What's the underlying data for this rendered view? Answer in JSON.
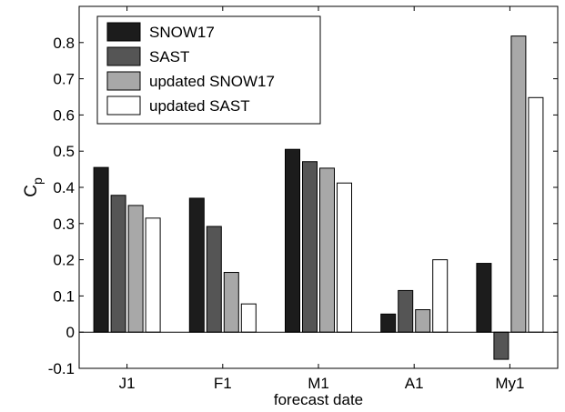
{
  "chart_data": {
    "type": "bar",
    "title": "",
    "xlabel": "forecast date",
    "ylabel": "C",
    "ylabel_subscript": "p",
    "categories": [
      "J1",
      "F1",
      "M1",
      "A1",
      "My1"
    ],
    "ylim": [
      -0.1,
      0.9
    ],
    "yticks": [
      -0.1,
      0,
      0.1,
      0.2,
      0.3,
      0.4,
      0.5,
      0.6,
      0.7,
      0.8
    ],
    "ytick_labels": [
      "-0.1",
      "0",
      "0.1",
      "0.2",
      "0.3",
      "0.4",
      "0.5",
      "0.6",
      "0.7",
      "0.8"
    ],
    "grid": false,
    "legend_position": "top-left",
    "series": [
      {
        "name": "SNOW17",
        "color": "#1c1c1c",
        "values": [
          0.455,
          0.37,
          0.505,
          0.05,
          0.19
        ]
      },
      {
        "name": "SAST",
        "color": "#555555",
        "values": [
          0.378,
          0.292,
          0.471,
          0.115,
          -0.075
        ]
      },
      {
        "name": "updated SNOW17",
        "color": "#a8a8a8",
        "values": [
          0.35,
          0.165,
          0.453,
          0.062,
          0.818
        ]
      },
      {
        "name": "updated SAST",
        "color": "#ffffff",
        "values": [
          0.315,
          0.078,
          0.412,
          0.2,
          0.648
        ]
      }
    ]
  }
}
